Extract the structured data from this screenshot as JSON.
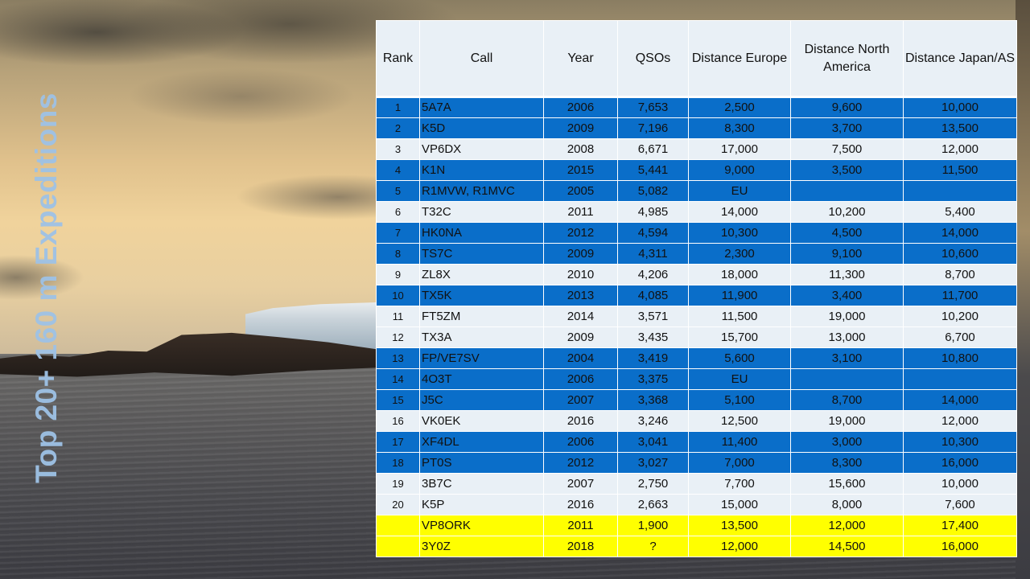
{
  "title": "Top 20+ 160 m Expeditions",
  "table": {
    "headers": [
      "Rank",
      "Call",
      "Year",
      "QSOs",
      "Distance Europe",
      "Distance North America",
      "Distance Japan/AS"
    ],
    "rows": [
      {
        "rank": "1",
        "call": "5A7A",
        "year": "2006",
        "qsos": "7,653",
        "eu": "2,500",
        "na": "9,600",
        "jp": "10,000",
        "style": "blue"
      },
      {
        "rank": "2",
        "call": "K5D",
        "year": "2009",
        "qsos": "7,196",
        "eu": "8,300",
        "na": "3,700",
        "jp": "13,500",
        "style": "blue"
      },
      {
        "rank": "3",
        "call": "VP6DX",
        "year": "2008",
        "qsos": "6,671",
        "eu": "17,000",
        "na": "7,500",
        "jp": "12,000",
        "style": "light"
      },
      {
        "rank": "4",
        "call": "K1N",
        "year": "2015",
        "qsos": "5,441",
        "eu": "9,000",
        "na": "3,500",
        "jp": "11,500",
        "style": "blue"
      },
      {
        "rank": "5",
        "call": "R1MVW, R1MVC",
        "year": "2005",
        "qsos": "5,082",
        "eu": "EU",
        "na": "",
        "jp": "",
        "style": "blue"
      },
      {
        "rank": "6",
        "call": "T32C",
        "year": "2011",
        "qsos": "4,985",
        "eu": "14,000",
        "na": "10,200",
        "jp": "5,400",
        "style": "light"
      },
      {
        "rank": "7",
        "call": "HK0NA",
        "year": "2012",
        "qsos": "4,594",
        "eu": "10,300",
        "na": "4,500",
        "jp": "14,000",
        "style": "blue"
      },
      {
        "rank": "8",
        "call": "TS7C",
        "year": "2009",
        "qsos": "4,311",
        "eu": "2,300",
        "na": "9,100",
        "jp": "10,600",
        "style": "blue"
      },
      {
        "rank": "9",
        "call": "ZL8X",
        "year": "2010",
        "qsos": "4,206",
        "eu": "18,000",
        "na": "11,300",
        "jp": "8,700",
        "style": "light"
      },
      {
        "rank": "10",
        "call": "TX5K",
        "year": "2013",
        "qsos": "4,085",
        "eu": "11,900",
        "na": "3,400",
        "jp": "11,700",
        "style": "blue"
      },
      {
        "rank": "11",
        "call": "FT5ZM",
        "year": "2014",
        "qsos": "3,571",
        "eu": "11,500",
        "na": "19,000",
        "jp": "10,200",
        "style": "light"
      },
      {
        "rank": "12",
        "call": "TX3A",
        "year": "2009",
        "qsos": "3,435",
        "eu": "15,700",
        "na": "13,000",
        "jp": "6,700",
        "style": "light"
      },
      {
        "rank": "13",
        "call": "FP/VE7SV",
        "year": "2004",
        "qsos": "3,419",
        "eu": "5,600",
        "na": "3,100",
        "jp": "10,800",
        "style": "blue"
      },
      {
        "rank": "14",
        "call": "4O3T",
        "year": "2006",
        "qsos": "3,375",
        "eu": "EU",
        "na": "",
        "jp": "",
        "style": "blue"
      },
      {
        "rank": "15",
        "call": "J5C",
        "year": "2007",
        "qsos": "3,368",
        "eu": "5,100",
        "na": "8,700",
        "jp": "14,000",
        "style": "blue"
      },
      {
        "rank": "16",
        "call": "VK0EK",
        "year": "2016",
        "qsos": "3,246",
        "eu": "12,500",
        "na": "19,000",
        "jp": "12,000",
        "style": "light"
      },
      {
        "rank": "17",
        "call": "XF4DL",
        "year": "2006",
        "qsos": "3,041",
        "eu": "11,400",
        "na": "3,000",
        "jp": "10,300",
        "style": "blue"
      },
      {
        "rank": "18",
        "call": "PT0S",
        "year": "2012",
        "qsos": "3,027",
        "eu": "7,000",
        "na": "8,300",
        "jp": "16,000",
        "style": "blue"
      },
      {
        "rank": "19",
        "call": "3B7C",
        "year": "2007",
        "qsos": "2,750",
        "eu": "7,700",
        "na": "15,600",
        "jp": "10,000",
        "style": "light"
      },
      {
        "rank": "20",
        "call": "K5P",
        "year": "2016",
        "qsos": "2,663",
        "eu": "15,000",
        "na": "8,000",
        "jp": "7,600",
        "style": "light"
      },
      {
        "rank": "",
        "call": "VP8ORK",
        "year": "2011",
        "qsos": "1,900",
        "eu": "13,500",
        "na": "12,000",
        "jp": "17,400",
        "style": "yellow"
      },
      {
        "rank": "",
        "call": "3Y0Z",
        "year": "2018",
        "qsos": "?",
        "eu": "12,000",
        "na": "14,500",
        "jp": "16,000",
        "style": "yellow"
      }
    ]
  },
  "colors": {
    "blue_row": "#0a6ec9",
    "light_row": "#e9f0f6",
    "highlight_row": "#ffff00",
    "title": "#9ec2e6"
  }
}
